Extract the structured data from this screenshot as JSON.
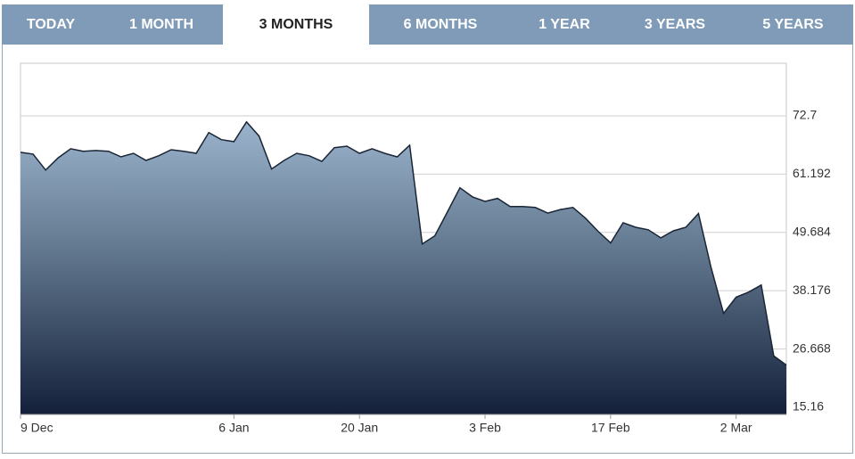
{
  "tabs": [
    "TODAY",
    "1 MONTH",
    "3 MONTHS",
    "6 MONTHS",
    "1 YEAR",
    "3 YEARS",
    "5 YEARS"
  ],
  "active_tab": 2,
  "chart_data": {
    "type": "area",
    "categories": [
      "9 Dec",
      null,
      null,
      null,
      null,
      null,
      null,
      null,
      null,
      null,
      null,
      null,
      null,
      null,
      null,
      null,
      null,
      "6 Jan",
      null,
      null,
      null,
      null,
      null,
      null,
      null,
      null,
      null,
      "20 Jan",
      null,
      null,
      null,
      null,
      null,
      null,
      null,
      null,
      null,
      "3 Feb",
      null,
      null,
      null,
      null,
      null,
      null,
      null,
      null,
      null,
      "17 Feb",
      null,
      null,
      null,
      null,
      null,
      null,
      null,
      null,
      null,
      "2 Mar",
      null,
      null,
      null,
      null
    ],
    "values": [
      65.5,
      65.15,
      62.0,
      64.4,
      66.2,
      65.7,
      65.85,
      65.7,
      64.6,
      65.3,
      63.9,
      64.8,
      66.0,
      65.7,
      65.3,
      69.4,
      68.0,
      67.6,
      71.5,
      68.7,
      62.2,
      63.9,
      65.3,
      64.8,
      63.7,
      66.4,
      66.7,
      65.3,
      66.2,
      65.3,
      64.6,
      66.9,
      47.4,
      49.0,
      53.7,
      58.5,
      56.7,
      55.8,
      56.4,
      54.8,
      54.8,
      54.6,
      53.5,
      54.2,
      54.6,
      52.5,
      49.9,
      47.6,
      51.6,
      50.7,
      50.2,
      48.6,
      50.0,
      50.7,
      53.4,
      42.8,
      33.7,
      36.9,
      37.9,
      39.3,
      25.3,
      23.5
    ],
    "color": "#1a2535",
    "ylim": [
      13.75,
      83.07
    ],
    "yticks": [
      15.16,
      26.668,
      38.176,
      49.684,
      61.192,
      72.7
    ],
    "grid": true
  }
}
